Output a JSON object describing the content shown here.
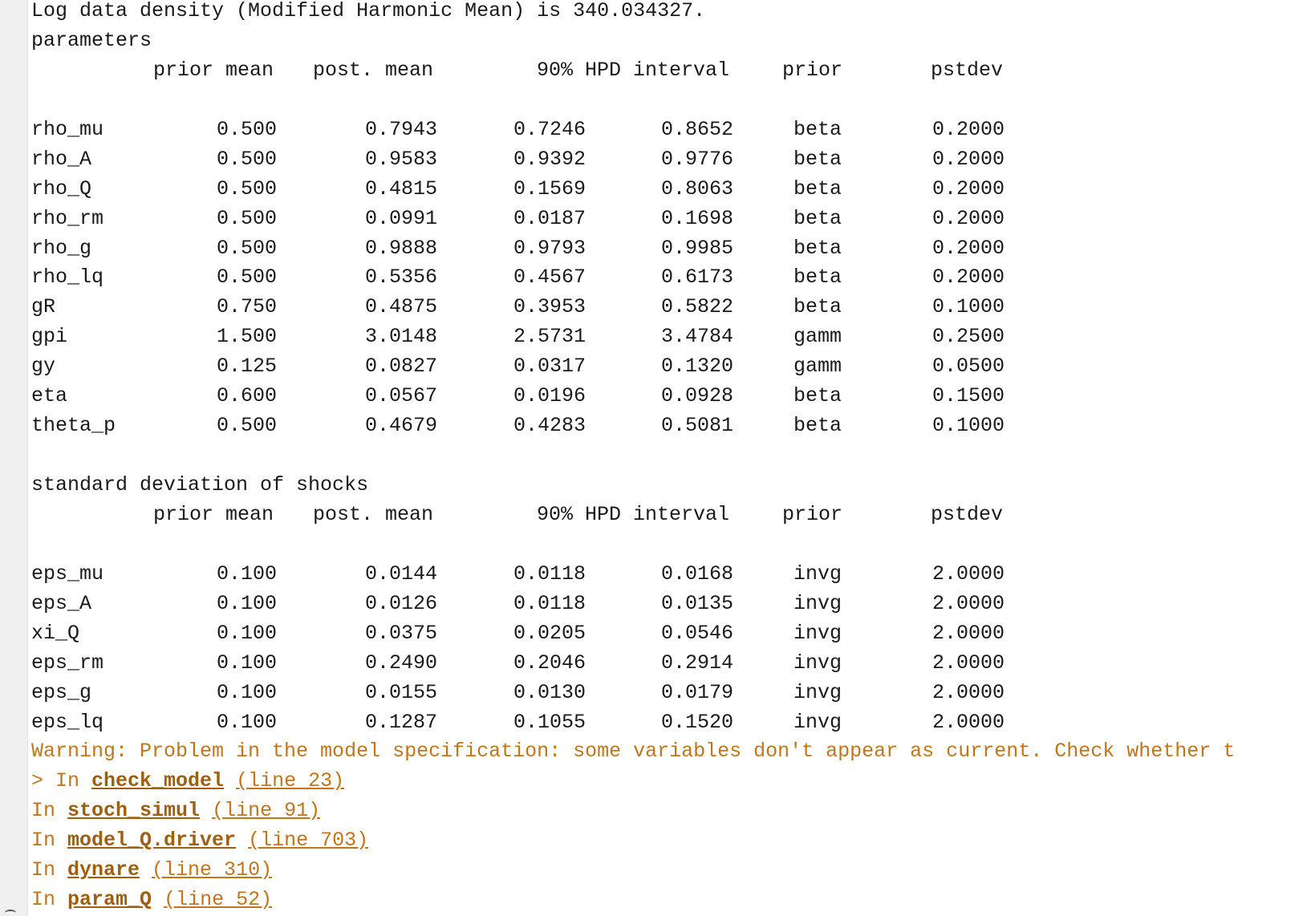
{
  "log_density_line": "Log data density (Modified Harmonic Mean) is 340.034327.",
  "parameters_title": "parameters",
  "shocks_title": "standard deviation of shocks",
  "headers": {
    "prior_mean": "prior mean",
    "post_mean": "post. mean",
    "hpd": "90% HPD interval",
    "prior": "prior",
    "pstdev": "pstdev"
  },
  "parameters": [
    {
      "name": "rho_mu",
      "prior_mean": "0.500",
      "post_mean": "0.7943",
      "hpd_lo": "0.7246",
      "hpd_hi": "0.8652",
      "prior": "beta",
      "pstdev": "0.2000"
    },
    {
      "name": "rho_A",
      "prior_mean": "0.500",
      "post_mean": "0.9583",
      "hpd_lo": "0.9392",
      "hpd_hi": "0.9776",
      "prior": "beta",
      "pstdev": "0.2000"
    },
    {
      "name": "rho_Q",
      "prior_mean": "0.500",
      "post_mean": "0.4815",
      "hpd_lo": "0.1569",
      "hpd_hi": "0.8063",
      "prior": "beta",
      "pstdev": "0.2000"
    },
    {
      "name": "rho_rm",
      "prior_mean": "0.500",
      "post_mean": "0.0991",
      "hpd_lo": "0.0187",
      "hpd_hi": "0.1698",
      "prior": "beta",
      "pstdev": "0.2000"
    },
    {
      "name": "rho_g",
      "prior_mean": "0.500",
      "post_mean": "0.9888",
      "hpd_lo": "0.9793",
      "hpd_hi": "0.9985",
      "prior": "beta",
      "pstdev": "0.2000"
    },
    {
      "name": "rho_lq",
      "prior_mean": "0.500",
      "post_mean": "0.5356",
      "hpd_lo": "0.4567",
      "hpd_hi": "0.6173",
      "prior": "beta",
      "pstdev": "0.2000"
    },
    {
      "name": "gR",
      "prior_mean": "0.750",
      "post_mean": "0.4875",
      "hpd_lo": "0.3953",
      "hpd_hi": "0.5822",
      "prior": "beta",
      "pstdev": "0.1000"
    },
    {
      "name": "gpi",
      "prior_mean": "1.500",
      "post_mean": "3.0148",
      "hpd_lo": "2.5731",
      "hpd_hi": "3.4784",
      "prior": "gamm",
      "pstdev": "0.2500"
    },
    {
      "name": "gy",
      "prior_mean": "0.125",
      "post_mean": "0.0827",
      "hpd_lo": "0.0317",
      "hpd_hi": "0.1320",
      "prior": "gamm",
      "pstdev": "0.0500"
    },
    {
      "name": "eta",
      "prior_mean": "0.600",
      "post_mean": "0.0567",
      "hpd_lo": "0.0196",
      "hpd_hi": "0.0928",
      "prior": "beta",
      "pstdev": "0.1500"
    },
    {
      "name": "theta_p",
      "prior_mean": "0.500",
      "post_mean": "0.4679",
      "hpd_lo": "0.4283",
      "hpd_hi": "0.5081",
      "prior": "beta",
      "pstdev": "0.1000"
    }
  ],
  "shocks": [
    {
      "name": "eps_mu",
      "prior_mean": "0.100",
      "post_mean": "0.0144",
      "hpd_lo": "0.0118",
      "hpd_hi": "0.0168",
      "prior": "invg",
      "pstdev": "2.0000"
    },
    {
      "name": "eps_A",
      "prior_mean": "0.100",
      "post_mean": "0.0126",
      "hpd_lo": "0.0118",
      "hpd_hi": "0.0135",
      "prior": "invg",
      "pstdev": "2.0000"
    },
    {
      "name": "xi_Q",
      "prior_mean": "0.100",
      "post_mean": "0.0375",
      "hpd_lo": "0.0205",
      "hpd_hi": "0.0546",
      "prior": "invg",
      "pstdev": "2.0000"
    },
    {
      "name": "eps_rm",
      "prior_mean": "0.100",
      "post_mean": "0.2490",
      "hpd_lo": "0.2046",
      "hpd_hi": "0.2914",
      "prior": "invg",
      "pstdev": "2.0000"
    },
    {
      "name": "eps_g",
      "prior_mean": "0.100",
      "post_mean": "0.0155",
      "hpd_lo": "0.0130",
      "hpd_hi": "0.0179",
      "prior": "invg",
      "pstdev": "2.0000"
    },
    {
      "name": "eps_lq",
      "prior_mean": "0.100",
      "post_mean": "0.1287",
      "hpd_lo": "0.1055",
      "hpd_hi": "0.1520",
      "prior": "invg",
      "pstdev": "2.0000"
    }
  ],
  "warning_text": "Warning: Problem in the model specification: some variables don't appear as current. Check whether t",
  "stack": [
    {
      "prefix": "> In ",
      "fn": "check_model",
      "line": "(line 23)"
    },
    {
      "prefix": "In ",
      "fn": "stoch_simul",
      "line": "(line 91)"
    },
    {
      "prefix": "In ",
      "fn": "model_Q.driver",
      "line": "(line 703)"
    },
    {
      "prefix": "In ",
      "fn": "dynare",
      "line": "(line 310)"
    },
    {
      "prefix": "In ",
      "fn": "param_Q",
      "line": "(line 52)"
    }
  ]
}
